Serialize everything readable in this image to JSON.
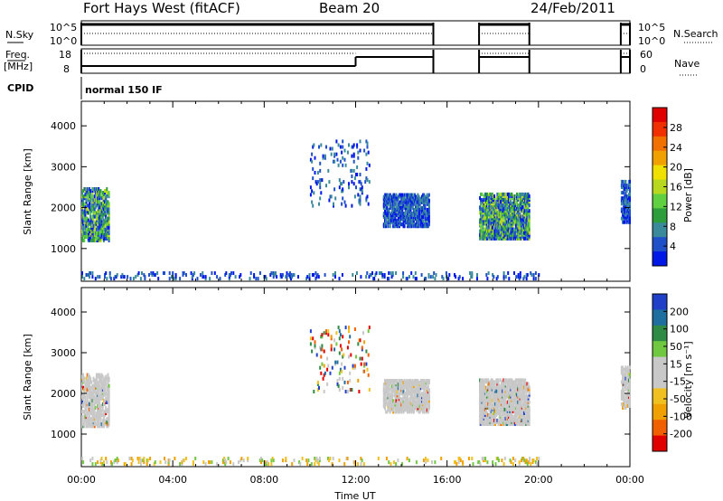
{
  "header": {
    "station": "Fort Hays West (fitACF)",
    "beam": "Beam 20",
    "date": "24/Feb/2011"
  },
  "strips": {
    "nsky": {
      "label": "N.Sky",
      "ticks": [
        "10^5",
        "10^0"
      ],
      "right_ticks": [
        "10^5",
        "10^0"
      ],
      "right_label": "N.Search"
    },
    "freq": {
      "label_top": "Freq.",
      "label_bottom": "[MHz]",
      "ticks": [
        "18",
        "8"
      ],
      "right_ticks": [
        "60",
        "0"
      ],
      "right_label": "Nave"
    },
    "cpid": {
      "label": "CPID",
      "mode": "normal 150 IF"
    }
  },
  "colors": {
    "power": [
      "#0018e6",
      "#2050c8",
      "#3a8a9c",
      "#2e9e3c",
      "#60d040",
      "#b8d820",
      "#f0e000",
      "#f0a000",
      "#f07000",
      "#f03000",
      "#e00000"
    ],
    "velocity": [
      "#2040c8",
      "#1e6ea0",
      "#2e8a44",
      "#70c840",
      "#c8c8c8",
      "#c8c8c8",
      "#f0c020",
      "#f0a000",
      "#f06000",
      "#e00000"
    ]
  },
  "chart_data": [
    {
      "type": "heatmap",
      "name": "power-panel",
      "ylabel": "Slant Range [km]",
      "ylim": [
        200,
        4600
      ],
      "xlim": [
        0,
        24
      ],
      "yticks": [
        1000,
        2000,
        3000,
        4000
      ],
      "colorbar": {
        "label": "Power [dB]",
        "ticks": [
          "28",
          "24",
          "20",
          "16",
          "12",
          "8",
          "4"
        ],
        "range": [
          0,
          30
        ]
      },
      "echo_regions": [
        {
          "x0": 0.0,
          "x1": 1.2,
          "y0": 1150,
          "y1": 2450,
          "density": 0.55,
          "value": "low-mid"
        },
        {
          "x0": 13.2,
          "x1": 15.2,
          "y0": 1500,
          "y1": 2300,
          "density": 0.65,
          "value": "low"
        },
        {
          "x0": 17.4,
          "x1": 19.6,
          "y0": 1200,
          "y1": 2300,
          "density": 0.7,
          "value": "low-mid"
        },
        {
          "x0": 0.0,
          "x1": 20.0,
          "y0": 220,
          "y1": 400,
          "density": 0.12,
          "value": "low"
        },
        {
          "x0": 10.0,
          "x1": 12.6,
          "y0": 2000,
          "y1": 3600,
          "density": 0.06,
          "value": "low"
        },
        {
          "x0": 23.6,
          "x1": 24.0,
          "y0": 1600,
          "y1": 2600,
          "density": 0.6,
          "value": "low"
        }
      ]
    },
    {
      "type": "heatmap",
      "name": "velocity-panel",
      "xlabel": "Time UT",
      "ylabel": "Slant Range [km]",
      "ylim": [
        200,
        4600
      ],
      "xlim": [
        0,
        24
      ],
      "yticks": [
        1000,
        2000,
        3000,
        4000
      ],
      "xticks": [
        "00:00",
        "04:00",
        "08:00",
        "12:00",
        "16:00",
        "20:00",
        "00:00"
      ],
      "colorbar": {
        "label": "Velocity [m s⁻¹]",
        "ticks": [
          "200",
          "100",
          "50",
          "15",
          "-15",
          "-50",
          "-100",
          "-200"
        ],
        "range": [
          -250,
          250
        ]
      },
      "echo_regions": [
        {
          "x0": 0.0,
          "x1": 1.2,
          "y0": 1150,
          "y1": 2450,
          "density": 0.55,
          "value": "near-zero"
        },
        {
          "x0": 13.2,
          "x1": 15.2,
          "y0": 1500,
          "y1": 2300,
          "density": 0.65,
          "value": "near-zero"
        },
        {
          "x0": 17.4,
          "x1": 19.6,
          "y0": 1200,
          "y1": 2300,
          "density": 0.7,
          "value": "near-zero"
        },
        {
          "x0": 0.0,
          "x1": 20.0,
          "y0": 220,
          "y1": 400,
          "density": 0.12,
          "value": "negative"
        },
        {
          "x0": 10.0,
          "x1": 12.6,
          "y0": 2000,
          "y1": 3600,
          "density": 0.06,
          "value": "mixed"
        },
        {
          "x0": 23.6,
          "x1": 24.0,
          "y0": 1600,
          "y1": 2600,
          "density": 0.6,
          "value": "near-zero"
        }
      ]
    }
  ],
  "data_gaps_hours": [
    [
      15.4,
      17.4
    ],
    [
      19.6,
      23.6
    ]
  ]
}
